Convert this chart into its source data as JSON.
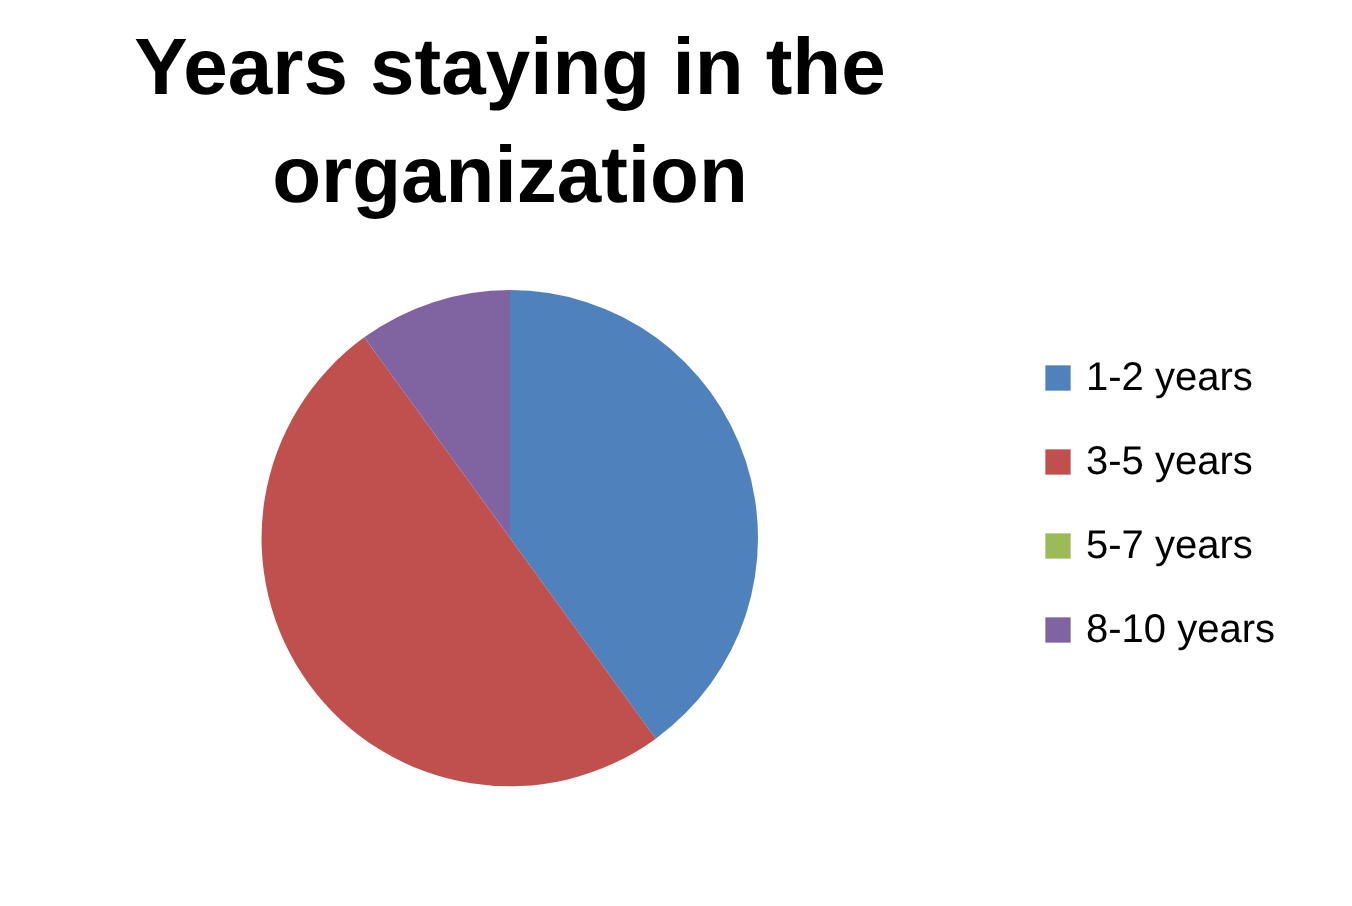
{
  "chart_data": {
    "type": "pie",
    "title": "Years staying in the organization",
    "categories": [
      "1-2 years",
      "3-5 years",
      "5-7 years",
      "8-10 years"
    ],
    "values": [
      40,
      50,
      0,
      10
    ],
    "colors": [
      "#4f81bd",
      "#c0504d",
      "#9bbb59",
      "#8064a2"
    ],
    "legend": "right"
  }
}
